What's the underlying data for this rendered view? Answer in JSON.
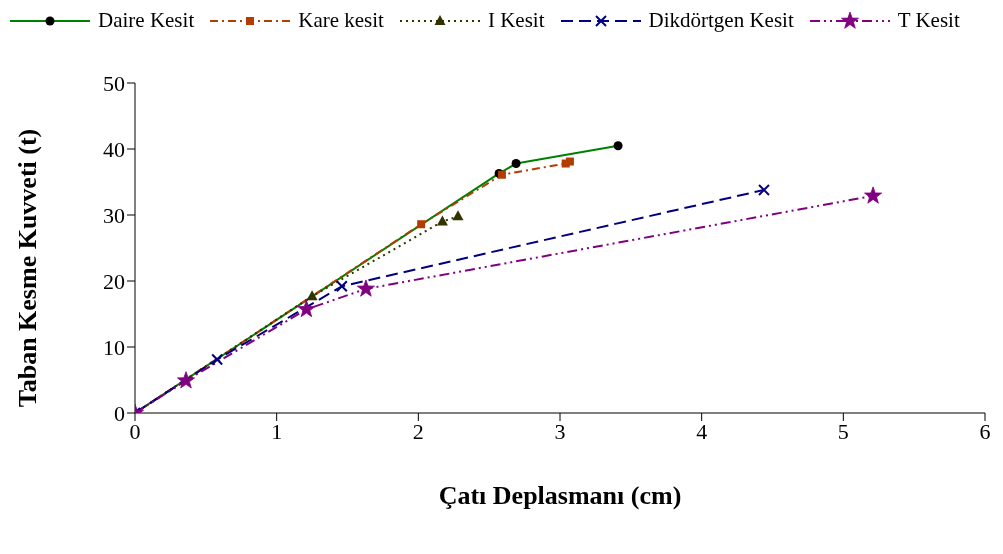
{
  "chart_data": {
    "type": "line",
    "xlabel": "Çatı Deplasmanı (cm)",
    "ylabel": "Taban Kesme Kuvveti (t)",
    "xlim": [
      0,
      6
    ],
    "xticks": [
      0,
      1,
      2,
      3,
      4,
      5,
      6
    ],
    "ylim": [
      0,
      50
    ],
    "yticks": [
      0,
      10,
      20,
      30,
      40,
      50
    ],
    "grid": false,
    "legend": "top",
    "series": [
      {
        "name": "Daire Kesit",
        "color": "#008000",
        "marker": "circle",
        "line_style": "solid",
        "x": [
          0,
          2.57,
          2.69,
          3.41
        ],
        "values": [
          0,
          36.3,
          37.8,
          40.5
        ]
      },
      {
        "name": "Kare kesit",
        "color": "#b33c00",
        "marker": "square",
        "line_style": "dashdot",
        "x": [
          0,
          2.02,
          2.59,
          3.04,
          3.07
        ],
        "values": [
          0,
          28.6,
          36.1,
          37.8,
          38.1
        ]
      },
      {
        "name": "I Kesit",
        "color": "#333300",
        "marker": "triangle",
        "line_style": "dotted",
        "x": [
          0,
          1.25,
          2.17,
          2.28
        ],
        "values": [
          0,
          17.7,
          29.0,
          29.8
        ]
      },
      {
        "name": "Dikdörtgen Kesit",
        "color": "#000080",
        "marker": "cross",
        "line_style": "dashed",
        "x": [
          0,
          0.58,
          1.46,
          4.44
        ],
        "values": [
          0,
          8.1,
          19.2,
          33.8
        ]
      },
      {
        "name": "T Kesit",
        "color": "#800080",
        "marker": "star",
        "line_style": "dashdotdot",
        "x": [
          0,
          0.36,
          1.21,
          1.63,
          5.21
        ],
        "values": [
          0,
          4.9,
          15.7,
          18.8,
          32.9
        ]
      }
    ]
  }
}
